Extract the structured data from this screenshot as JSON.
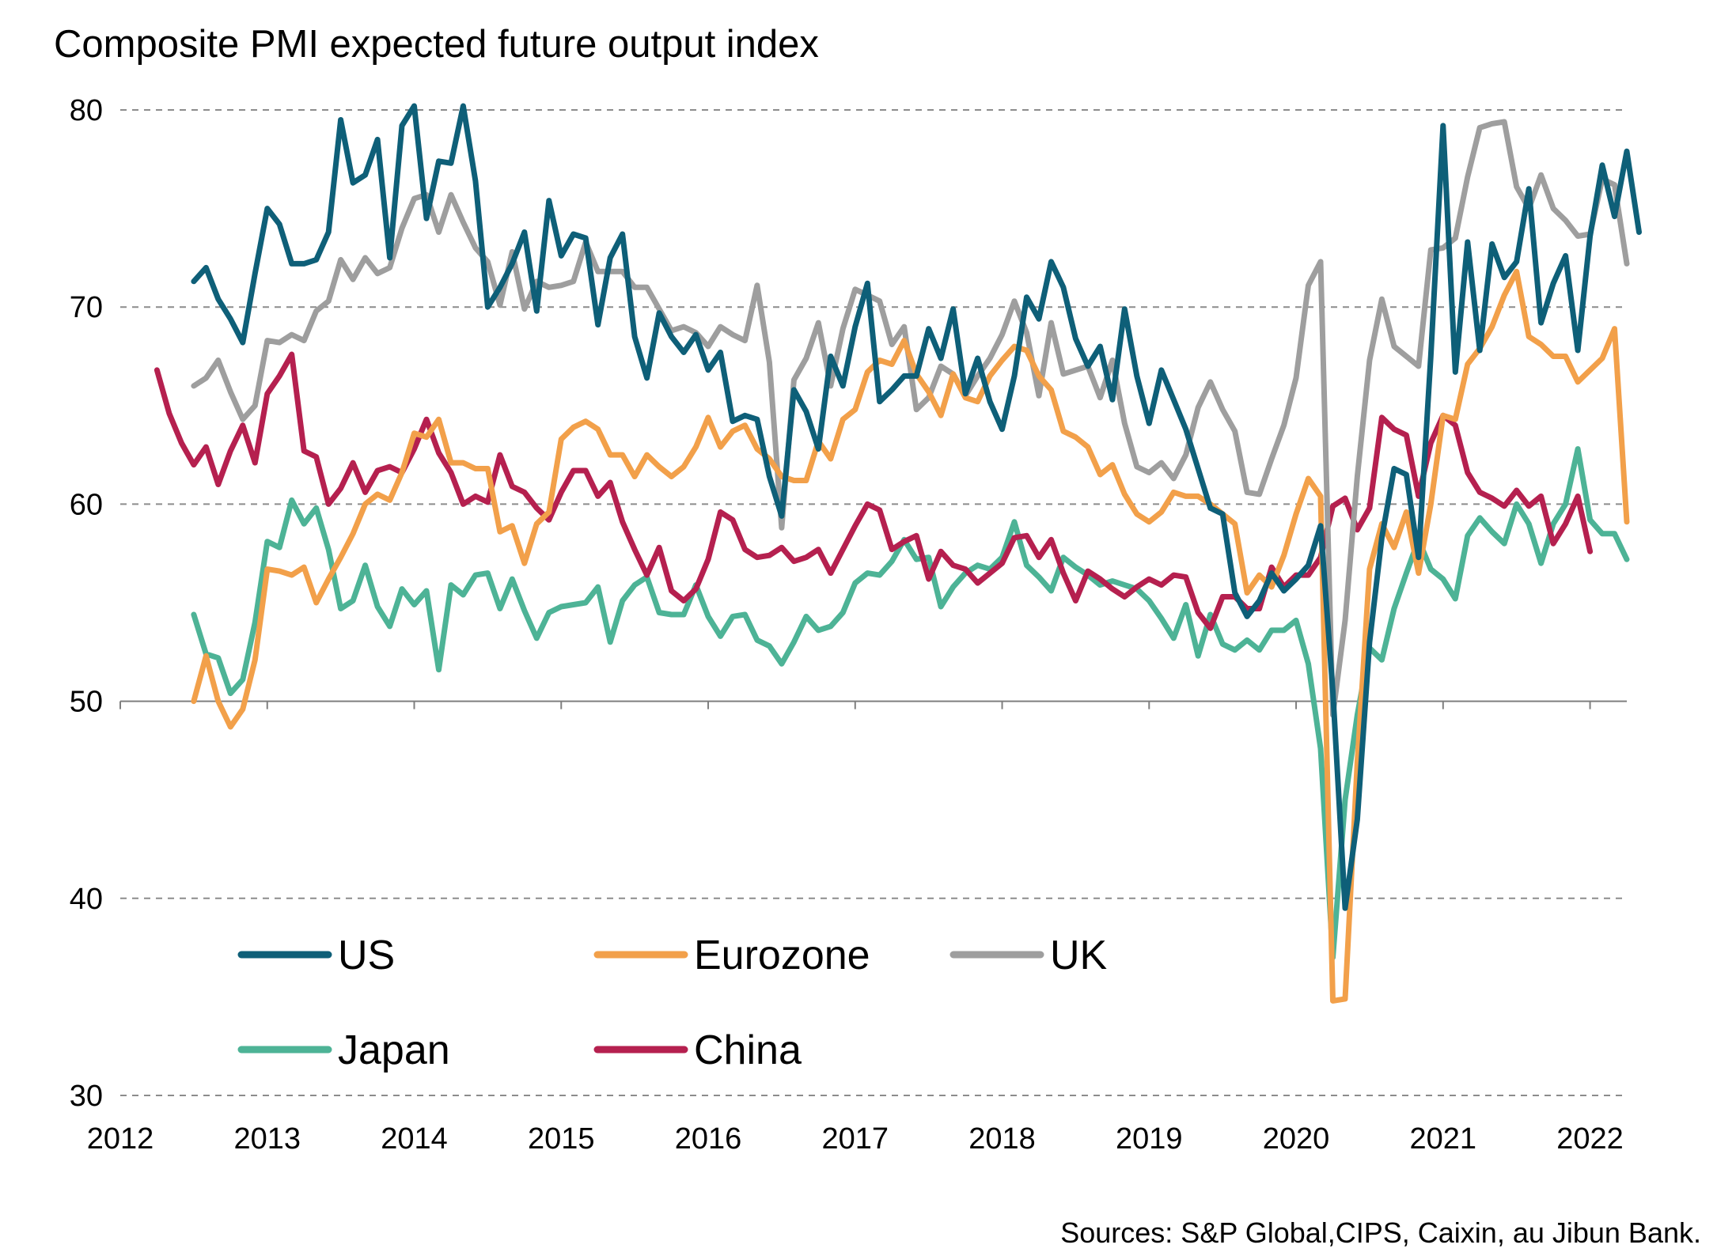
{
  "title": "Composite PMI expected future output index",
  "source": "Sources: S&P Global,CIPS, Caixin, au Jibun Bank.",
  "chart_data": {
    "type": "line",
    "title": "Composite PMI expected future output index",
    "xlabel": "",
    "ylabel": "",
    "xlim": [
      "2012-01",
      "2022-04"
    ],
    "ylim": [
      30,
      80
    ],
    "y_ticks": [
      30,
      40,
      50,
      60,
      70,
      80
    ],
    "x_tick_labels": [
      "2012",
      "2013",
      "2014",
      "2015",
      "2016",
      "2017",
      "2018",
      "2019",
      "2020",
      "2021",
      "2022"
    ],
    "grid": "horizontal dashed",
    "legend": "lower-left, inside plot",
    "series": [
      {
        "name": "US",
        "color": "#0e5f78",
        "start": "2012-07",
        "values": [
          71.3,
          72.0,
          70.4,
          69.4,
          68.2,
          71.7,
          75.0,
          74.2,
          72.2,
          72.2,
          72.4,
          73.8,
          79.5,
          76.3,
          76.7,
          78.5,
          72.5,
          79.2,
          80.2,
          74.5,
          77.4,
          77.3,
          80.2,
          76.4,
          70.0,
          71.0,
          72.2,
          73.8,
          69.8,
          75.4,
          72.6,
          73.7,
          73.5,
          69.1,
          72.5,
          73.7,
          68.5,
          66.4,
          69.7,
          68.5,
          67.7,
          68.6,
          66.8,
          67.7,
          64.2,
          64.5,
          64.3,
          61.4,
          59.4,
          65.8,
          64.7,
          62.8,
          67.5,
          66.0,
          69.0,
          71.2,
          65.2,
          65.8,
          66.5,
          66.5,
          68.9,
          67.4,
          69.9,
          65.6,
          67.4,
          65.2,
          63.8,
          66.5,
          70.5,
          69.4,
          72.3,
          71.0,
          68.4,
          67.0,
          68.0,
          65.3,
          69.9,
          66.5,
          64.1,
          66.8,
          65.3,
          63.8,
          61.8,
          59.8,
          59.5,
          55.5,
          54.3,
          55.1,
          56.5,
          55.6,
          56.2,
          56.9,
          58.9,
          50.5,
          39.5,
          44.0,
          53.0,
          58.3,
          61.8,
          61.5,
          57.3,
          67.5,
          79.2,
          66.7,
          73.3,
          67.8,
          73.2,
          71.5,
          72.3,
          76.0,
          69.2,
          71.2,
          72.6,
          67.8,
          73.6,
          77.2,
          74.6,
          77.9,
          73.8
        ]
      },
      {
        "name": "Eurozone",
        "color": "#f2a04a",
        "start": "2012-07",
        "values": [
          50.0,
          52.3,
          50.0,
          48.7,
          49.6,
          52.1,
          56.7,
          56.6,
          56.4,
          56.8,
          55.0,
          56.2,
          57.3,
          58.5,
          60.0,
          60.5,
          60.2,
          61.6,
          63.6,
          63.4,
          64.3,
          62.1,
          62.1,
          61.8,
          61.8,
          58.6,
          58.9,
          57.0,
          59.0,
          59.6,
          63.3,
          63.9,
          64.2,
          63.8,
          62.5,
          62.5,
          61.4,
          62.5,
          61.9,
          61.4,
          61.9,
          62.9,
          64.4,
          62.9,
          63.7,
          64.0,
          62.8,
          62.3,
          61.4,
          61.2,
          61.2,
          63.2,
          62.3,
          64.3,
          64.8,
          66.7,
          67.3,
          67.1,
          68.3,
          66.6,
          65.7,
          64.5,
          66.6,
          65.4,
          65.2,
          66.5,
          67.3,
          68.0,
          67.8,
          66.5,
          65.8,
          63.7,
          63.4,
          62.9,
          61.5,
          62.0,
          60.5,
          59.5,
          59.1,
          59.6,
          60.6,
          60.4,
          60.4,
          60.0,
          59.5,
          59.0,
          55.5,
          56.4,
          55.8,
          57.4,
          59.5,
          61.3,
          60.4,
          34.8,
          34.9,
          46.9,
          56.7,
          59.0,
          57.8,
          59.6,
          56.5,
          60.0,
          64.5,
          64.3,
          67.1,
          67.9,
          69.0,
          70.6,
          71.8,
          68.5,
          68.1,
          67.5,
          67.5,
          66.2,
          66.8,
          67.4,
          68.9,
          59.1
        ]
      },
      {
        "name": "UK",
        "color": "#9e9e9e",
        "start": "2012-07",
        "values": [
          66.0,
          66.4,
          67.3,
          65.7,
          64.3,
          65.0,
          68.3,
          68.2,
          68.6,
          68.3,
          69.8,
          70.3,
          72.4,
          71.4,
          72.5,
          71.7,
          72.0,
          74.0,
          75.5,
          75.7,
          73.8,
          75.7,
          74.3,
          73.0,
          72.3,
          70.1,
          72.8,
          69.9,
          71.3,
          71.0,
          71.1,
          71.3,
          73.3,
          71.8,
          71.8,
          71.8,
          71.0,
          71.0,
          69.9,
          68.8,
          69.0,
          68.7,
          68.0,
          69.0,
          68.6,
          68.3,
          71.1,
          67.2,
          58.8,
          66.3,
          67.4,
          69.2,
          66.0,
          68.9,
          70.9,
          70.6,
          70.3,
          68.1,
          69.0,
          64.8,
          65.4,
          67.0,
          66.6,
          65.5,
          66.5,
          67.4,
          68.6,
          70.3,
          68.7,
          65.5,
          69.2,
          66.6,
          66.8,
          67.0,
          65.4,
          67.3,
          64.1,
          61.9,
          61.6,
          62.1,
          61.3,
          62.5,
          64.9,
          66.2,
          64.8,
          63.7,
          60.6,
          60.5,
          62.3,
          64.0,
          66.4,
          71.1,
          72.3,
          49.3,
          54.1,
          61.4,
          67.3,
          70.4,
          68.0,
          67.5,
          67.0,
          72.9,
          73.0,
          73.5,
          76.6,
          79.1,
          79.3,
          79.4,
          76.1,
          75.0,
          76.7,
          75.0,
          74.4,
          73.6,
          73.7,
          76.5,
          76.2,
          72.2
        ]
      },
      {
        "name": "Japan",
        "color": "#4db396",
        "start": "2012-07",
        "values": [
          54.4,
          52.4,
          52.2,
          50.4,
          51.1,
          54.0,
          58.1,
          57.8,
          60.2,
          59.0,
          59.8,
          57.7,
          54.7,
          55.1,
          56.9,
          54.8,
          53.8,
          55.7,
          54.9,
          55.6,
          51.6,
          55.9,
          55.4,
          56.4,
          56.5,
          54.7,
          56.2,
          54.6,
          53.2,
          54.5,
          54.8,
          54.9,
          55.0,
          55.8,
          53.0,
          55.1,
          55.9,
          56.3,
          54.5,
          54.4,
          54.4,
          55.9,
          54.3,
          53.3,
          54.3,
          54.4,
          53.1,
          52.8,
          51.9,
          53.0,
          54.3,
          53.6,
          53.8,
          54.5,
          56.0,
          56.5,
          56.4,
          57.1,
          58.2,
          57.2,
          57.3,
          54.8,
          55.8,
          56.5,
          56.9,
          56.7,
          57.3,
          59.1,
          56.9,
          56.3,
          55.6,
          57.3,
          56.8,
          56.4,
          55.9,
          56.1,
          55.9,
          55.7,
          55.1,
          54.2,
          53.2,
          54.9,
          52.3,
          54.4,
          52.9,
          52.6,
          53.1,
          52.6,
          53.6,
          53.6,
          54.1,
          51.9,
          47.6,
          37.0,
          45.0,
          49.3,
          52.7,
          52.1,
          54.7,
          56.5,
          58.2,
          56.7,
          56.2,
          55.2,
          58.4,
          59.3,
          58.6,
          58.0,
          60.0,
          59.0,
          57.0,
          59.0,
          60.0,
          62.8,
          59.2,
          58.5,
          58.5,
          57.2
        ]
      },
      {
        "name": "China",
        "color": "#b5204f",
        "start": "2012-04",
        "values": [
          66.8,
          64.6,
          63.1,
          62.0,
          62.9,
          61.0,
          62.7,
          64.0,
          62.1,
          65.6,
          66.5,
          67.6,
          62.7,
          62.4,
          60.0,
          60.8,
          62.1,
          60.6,
          61.7,
          61.9,
          61.6,
          62.8,
          64.3,
          62.6,
          61.6,
          60.0,
          60.4,
          60.1,
          62.5,
          60.9,
          60.6,
          59.8,
          59.2,
          60.6,
          61.7,
          61.7,
          60.4,
          61.1,
          59.1,
          57.7,
          56.4,
          57.8,
          55.6,
          55.1,
          55.7,
          57.2,
          59.6,
          59.2,
          57.7,
          57.3,
          57.4,
          57.8,
          57.1,
          57.3,
          57.7,
          56.5,
          57.7,
          58.9,
          60.0,
          59.7,
          57.7,
          58.1,
          58.4,
          56.2,
          57.6,
          56.9,
          56.7,
          56.0,
          56.5,
          57.0,
          58.3,
          58.4,
          57.3,
          58.2,
          56.5,
          55.1,
          56.6,
          56.2,
          55.7,
          55.3,
          55.8,
          56.2,
          55.9,
          56.4,
          56.3,
          54.5,
          53.7,
          55.3,
          55.3,
          54.7,
          54.7,
          56.8,
          55.8,
          56.4,
          56.4,
          57.3,
          59.9,
          60.3,
          58.7,
          59.8,
          64.4,
          63.8,
          63.5,
          60.4,
          63.1,
          64.5,
          64.0,
          61.6,
          60.6,
          60.3,
          59.9,
          60.7,
          59.9,
          60.4,
          58.0,
          59.0,
          60.4,
          57.6
        ]
      }
    ]
  }
}
